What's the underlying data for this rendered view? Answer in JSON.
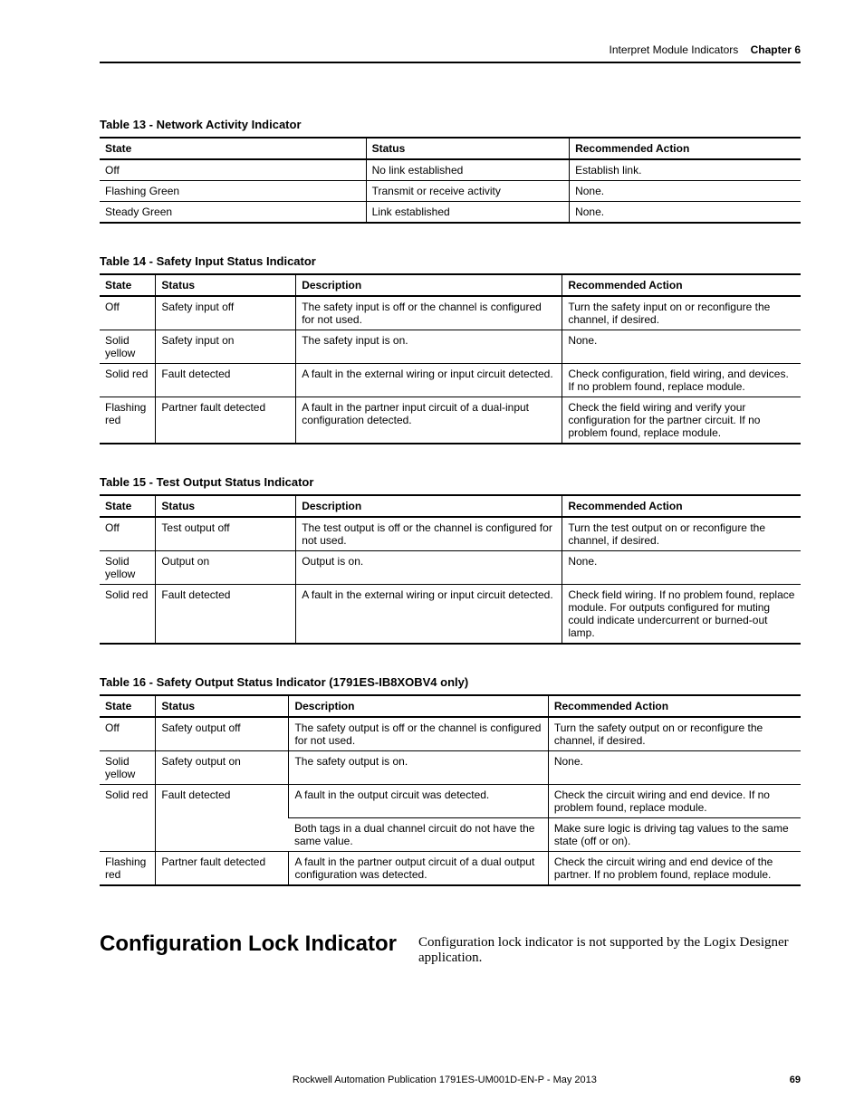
{
  "header": {
    "breadcrumb": "Interpret Module Indicators",
    "chapter_label": "Chapter 6"
  },
  "table13": {
    "caption": "Table 13 - Network Activity Indicator",
    "columns": [
      "State",
      "Status",
      "Recommended Action"
    ],
    "rows": [
      [
        "Off",
        "No link established",
        "Establish link."
      ],
      [
        "Flashing Green",
        "Transmit or receive activity",
        "None."
      ],
      [
        "Steady Green",
        "Link established",
        "None."
      ]
    ],
    "col_widths": [
      "38%",
      "29%",
      "33%"
    ]
  },
  "table14": {
    "caption": "Table 14 - Safety Input Status Indicator",
    "columns": [
      "State",
      "Status",
      "Description",
      "Recommended Action"
    ],
    "rows": [
      [
        "Off",
        "Safety input off",
        "The safety input is off or the channel is configured for not used.",
        "Turn the safety input on or reconfigure the channel, if desired."
      ],
      [
        "Solid yellow",
        "Safety input on",
        "The safety input is on.",
        "None."
      ],
      [
        "Solid red",
        "Fault detected",
        "A fault in the external wiring or input circuit detected.",
        "Check configuration, field wiring, and devices. If no problem found, replace module."
      ],
      [
        "Flashing red",
        "Partner fault detected",
        "A fault in the partner input circuit of a dual-input configuration detected.",
        "Check the field wiring and verify your configuration for the partner circuit. If no problem found, replace module."
      ]
    ],
    "col_widths": [
      "8%",
      "20%",
      "38%",
      "34%"
    ]
  },
  "table15": {
    "caption": "Table 15 - Test Output Status Indicator",
    "columns": [
      "State",
      "Status",
      "Description",
      "Recommended Action"
    ],
    "rows": [
      [
        "Off",
        "Test output off",
        "The test output is off or the channel is configured for not used.",
        "Turn the test output on or reconfigure the channel, if desired."
      ],
      [
        "Solid yellow",
        "Output on",
        "Output is on.",
        "None."
      ],
      [
        "Solid red",
        "Fault detected",
        "A fault in the external wiring or input circuit detected.",
        "Check field wiring. If no problem found, replace module. For outputs configured for muting could indicate undercurrent or burned-out lamp."
      ]
    ],
    "col_widths": [
      "8%",
      "20%",
      "38%",
      "34%"
    ]
  },
  "table16": {
    "caption": "Table 16 - Safety Output Status Indicator (1791ES-IB8XOBV4 only)",
    "columns": [
      "State",
      "Status",
      "Description",
      "Recommended Action"
    ],
    "rows": [
      {
        "state": "Off",
        "status": "Safety output off",
        "desc": "The safety output is off or the channel is configured for not used.",
        "action": "Turn the safety output on or reconfigure the channel, if desired."
      },
      {
        "state": "Solid yellow",
        "status": "Safety output on",
        "desc": "The safety output is on.",
        "action": "None."
      },
      {
        "state": "Solid red",
        "status": "Fault detected",
        "desc": "A fault in the output circuit was detected.",
        "action": "Check the circuit wiring and end device. If no problem found, replace module.",
        "rowspan_state": 2,
        "rowspan_status": 2
      },
      {
        "desc": "Both tags in a dual channel circuit do not have the same value.",
        "action": "Make sure logic is driving tag values to the same state (off or on)."
      },
      {
        "state": "Flashing red",
        "status": "Partner fault detected",
        "desc": "A fault in the partner output circuit of a dual output configuration was detected.",
        "action": "Check the circuit wiring and end device of the partner. If no problem found, replace module."
      }
    ],
    "col_widths": [
      "8%",
      "19%",
      "37%",
      "36%"
    ]
  },
  "section": {
    "title": "Configuration Lock Indicator",
    "body": "Configuration lock indicator is not supported by the Logix Designer application."
  },
  "footer": {
    "pubref": "Rockwell Automation Publication 1791ES-UM001D-EN-P - May 2013",
    "page": "69"
  }
}
